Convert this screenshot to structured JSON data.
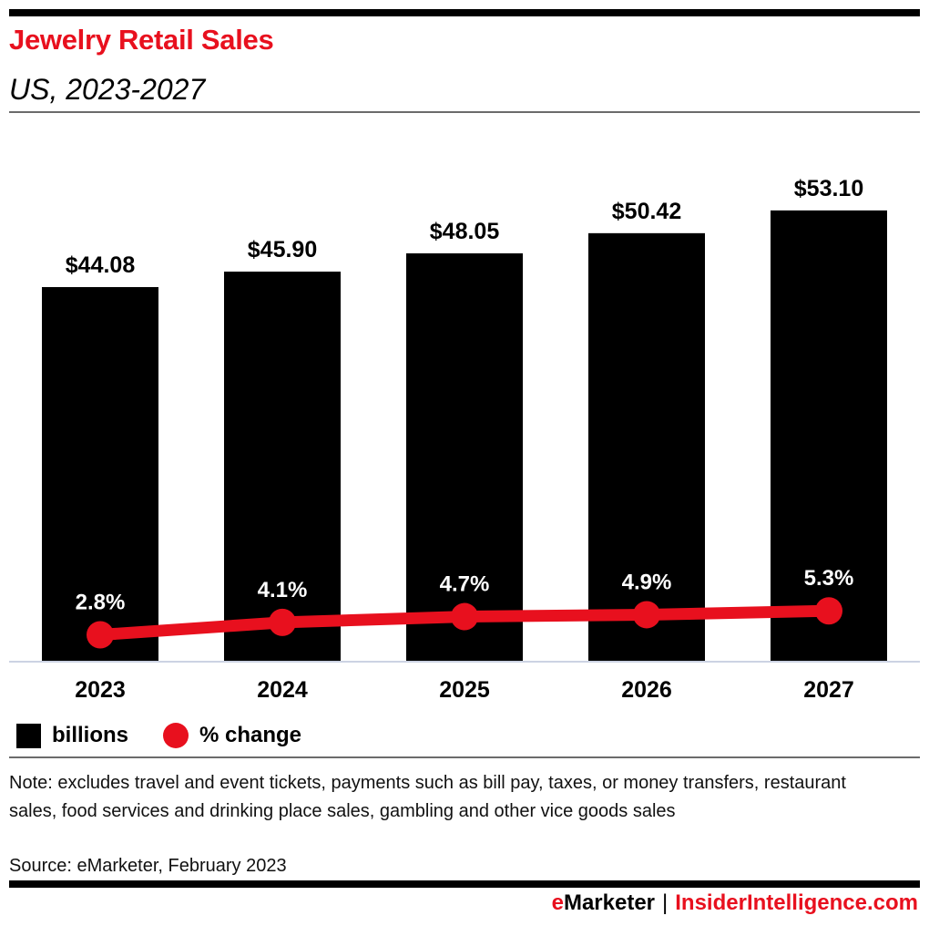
{
  "header": {
    "title": "Jewelry Retail Sales",
    "subtitle": "US, 2023-2027"
  },
  "chart_data": {
    "type": "bar",
    "title": "Jewelry Retail Sales",
    "subtitle": "US, 2023-2027",
    "categories": [
      "2023",
      "2024",
      "2025",
      "2026",
      "2027"
    ],
    "series": [
      {
        "name": "billions",
        "kind": "bar",
        "color": "#000000",
        "values": [
          44.08,
          45.9,
          48.05,
          50.42,
          53.1
        ],
        "labels": [
          "$44.08",
          "$45.90",
          "$48.05",
          "$50.42",
          "$53.10"
        ]
      },
      {
        "name": "% change",
        "kind": "line",
        "color": "#e8101e",
        "values": [
          2.8,
          4.1,
          4.7,
          4.9,
          5.3
        ],
        "labels": [
          "2.8%",
          "4.1%",
          "4.7%",
          "4.9%",
          "5.3%"
        ]
      }
    ],
    "xlabel": "",
    "ylabel": "",
    "ylim": [
      0,
      55
    ],
    "y2lim": [
      0,
      45
    ],
    "grid": false,
    "legend_position": "bottom-left"
  },
  "legend": {
    "items": [
      {
        "label": "billions",
        "swatch": "square",
        "color": "#000000"
      },
      {
        "label": "% change",
        "swatch": "circle",
        "color": "#e8101e"
      }
    ]
  },
  "footer": {
    "note": "Note: excludes travel and event tickets, payments such as bill pay, taxes, or money transfers, restaurant sales, food services and drinking place sales, gambling and other vice goods sales",
    "source": "Source: eMarketer, February 2023",
    "brand_e": "e",
    "brand_marketer": "Marketer",
    "brand_separator": "|",
    "brand_site": "InsiderIntelligence.com"
  },
  "colors": {
    "accent": "#e8101e",
    "bar": "#000000",
    "baseline": "#ccd3e3"
  }
}
